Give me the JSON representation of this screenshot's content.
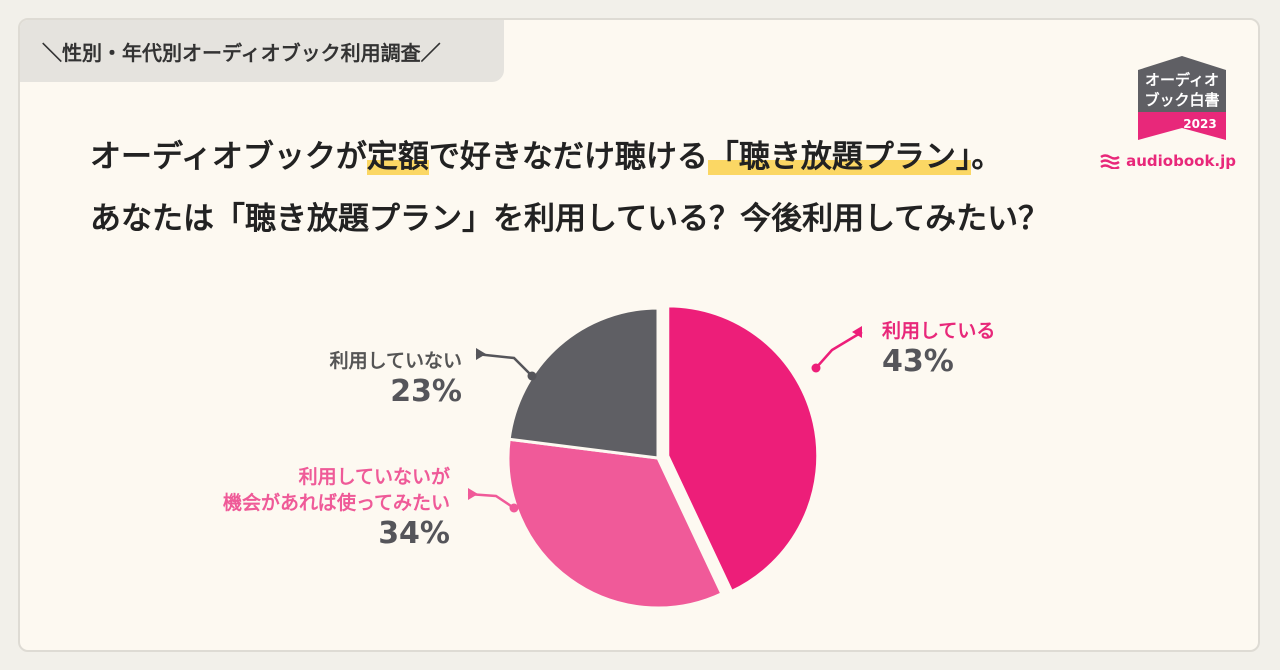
{
  "header": {
    "tag_label": "＼性別・年代別オーディオブック利用調査／",
    "question_line1_before": "オーディオブックが",
    "question_line1_hl1": "定額",
    "question_line1_mid": "で好きなだけ聴ける",
    "question_line1_hl2": "「聴き放題プラン」",
    "question_line1_after": "。",
    "question_line2": "あなたは「聴き放題プラン」を利用している？今後利用してみたい？"
  },
  "logo": {
    "line1": "オーディオ",
    "line2": "ブック白書",
    "year": "2023",
    "brand": "audiobook.jp",
    "icon": "audiobook-wave-icon"
  },
  "colors": {
    "highlight": "#fbd764",
    "accent": "#e8287a"
  },
  "chart_data": {
    "type": "pie",
    "start_angle_deg": 0,
    "direction": "clockwise",
    "exploded_slice": 0,
    "slices": [
      {
        "label": "利用している",
        "value": 43,
        "display": "43%",
        "color": "#ed1e79",
        "label_color": "#e8287a"
      },
      {
        "label": "利用していないが\n機会があれば使ってみたい",
        "value": 34,
        "display": "34%",
        "color": "#f05a99",
        "label_color": "#ef5a98"
      },
      {
        "label": "利用していない",
        "value": 23,
        "display": "23%",
        "color": "#5f5f64",
        "label_color": "#555555"
      }
    ]
  }
}
